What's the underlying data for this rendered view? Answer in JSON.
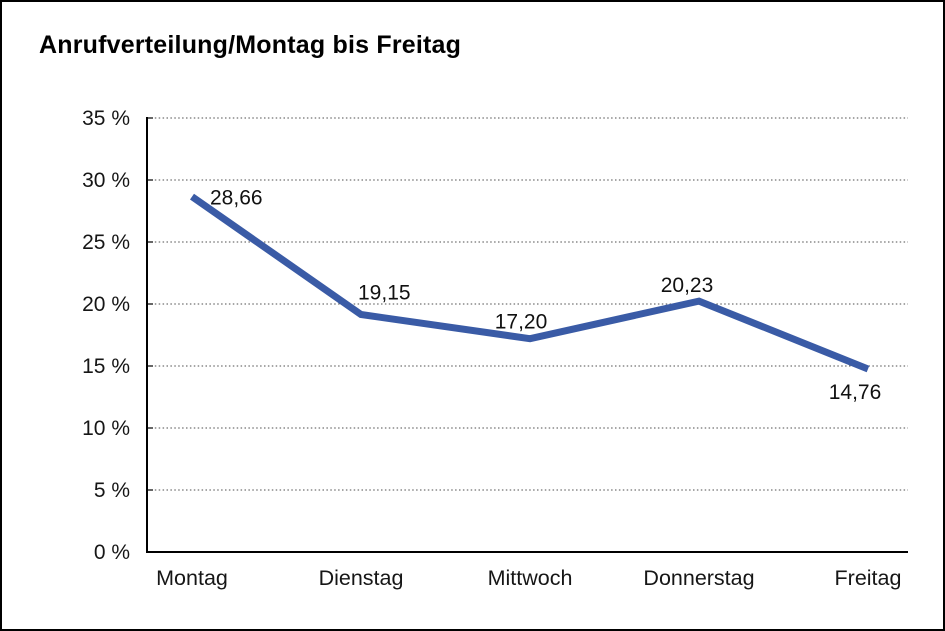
{
  "title": "Anrufverteilung/Montag bis Freitag",
  "page": {
    "background_color": "#ffffff",
    "border_color": "#000000"
  },
  "colors": {
    "line": "#3A5BA6",
    "grid": "#4d4d4d",
    "axis": "#000000",
    "text": "#161616"
  },
  "chart_data": {
    "type": "line",
    "title": "Anrufverteilung/Montag bis Freitag",
    "categories": [
      "Montag",
      "Dienstag",
      "Mittwoch",
      "Donnerstag",
      "Freitag"
    ],
    "series": [
      {
        "name": "Anrufverteilung",
        "values": [
          28.66,
          19.15,
          17.2,
          20.23,
          14.76
        ],
        "value_labels": [
          "28,66",
          "19,15",
          "17,20",
          "20,23",
          "14,76"
        ],
        "color": "#3A5BA6"
      }
    ],
    "xlabel": "",
    "ylabel": "",
    "y_unit": "%",
    "ylim": [
      0,
      35
    ],
    "ytick_step": 5,
    "ytick_labels": [
      "0 %",
      "5 %",
      "10 %",
      "15 %",
      "20 %",
      "25 %",
      "30 %",
      "35 %"
    ],
    "grid": "dotted-horizontal",
    "legend": "none",
    "label_placement": [
      "right-of-point",
      "above-left",
      "above",
      "above",
      "below"
    ]
  }
}
